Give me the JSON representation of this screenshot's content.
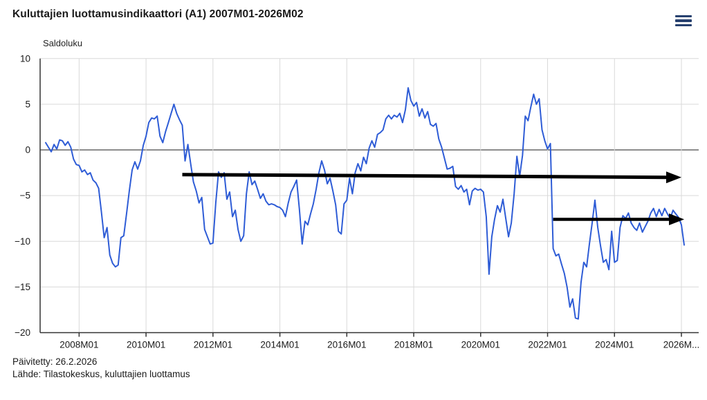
{
  "header": {
    "title": "Kuluttajien luottamusindikaattori (A1) 2007M01-2026M02",
    "menu_icon": "hamburger-menu"
  },
  "footer": {
    "updated": "Päivitetty: 26.2.2026",
    "source": "Lähde: Tilastokeskus, kuluttajien luottamus"
  },
  "chart_data": {
    "type": "line",
    "title": "Kuluttajien luottamusindikaattori (A1) 2007M01-2026M02",
    "ylabel": "Saldoluku",
    "xlabel": "",
    "x_start": "2007M01",
    "x_end": "2026M02",
    "ylim": [
      -20,
      10
    ],
    "y_ticks": [
      10,
      5,
      0,
      -5,
      -10,
      -15,
      -20
    ],
    "x_tick_labels": [
      "2008M01",
      "2010M01",
      "2012M01",
      "2014M01",
      "2016M01",
      "2018M01",
      "2020M01",
      "2022M01",
      "2024M01",
      "2026M..."
    ],
    "grid": true,
    "legend": "none",
    "line_color": "#2e5cd6",
    "grid_color": "#d9d9d9",
    "zero_line_color": "#8c8c8c",
    "axis_color": "#333333",
    "annotation_color": "#000000",
    "series": [
      {
        "name": "Kuluttajien luottamusindikaattori (A1)",
        "start": "2007M01",
        "values": [
          0.8,
          0.3,
          -0.2,
          0.6,
          0.1,
          1.1,
          1.0,
          0.5,
          0.9,
          0.3,
          -1.0,
          -1.6,
          -1.7,
          -2.4,
          -2.2,
          -2.7,
          -2.5,
          -3.3,
          -3.6,
          -4.2,
          -6.8,
          -9.6,
          -8.5,
          -11.5,
          -12.4,
          -12.8,
          -12.6,
          -9.6,
          -9.4,
          -7.0,
          -4.5,
          -2.2,
          -1.3,
          -2.1,
          -1.2,
          0.5,
          1.5,
          3.0,
          3.5,
          3.4,
          3.7,
          1.5,
          0.8,
          2.0,
          3.0,
          4.0,
          5.0,
          4.0,
          3.3,
          2.7,
          -1.2,
          0.6,
          -1.5,
          -3.5,
          -4.5,
          -5.8,
          -5.2,
          -8.7,
          -9.5,
          -10.3,
          -10.2,
          -5.8,
          -2.4,
          -3.0,
          -2.5,
          -5.4,
          -4.6,
          -7.3,
          -6.6,
          -8.7,
          -10.0,
          -9.4,
          -4.8,
          -2.4,
          -3.8,
          -3.4,
          -4.3,
          -5.3,
          -4.8,
          -5.6,
          -6.0,
          -5.9,
          -6.0,
          -6.2,
          -6.3,
          -6.6,
          -7.3,
          -5.8,
          -4.6,
          -4.0,
          -3.3,
          -6.5,
          -10.3,
          -7.8,
          -8.2,
          -7.0,
          -5.9,
          -4.3,
          -2.5,
          -1.2,
          -2.2,
          -3.7,
          -3.1,
          -4.5,
          -6.0,
          -8.9,
          -9.2,
          -5.9,
          -5.5,
          -3.1,
          -4.8,
          -2.5,
          -1.5,
          -2.3,
          -0.8,
          -1.5,
          0.2,
          1.0,
          0.3,
          1.7,
          1.9,
          2.2,
          3.4,
          3.8,
          3.4,
          3.8,
          3.6,
          4.0,
          3.0,
          4.4,
          6.8,
          5.4,
          4.8,
          5.2,
          3.7,
          4.5,
          3.5,
          4.2,
          2.8,
          2.6,
          2.9,
          1.2,
          0.3,
          -0.9,
          -2.1,
          -2.0,
          -1.8,
          -4.0,
          -4.3,
          -3.9,
          -4.6,
          -4.3,
          -6.0,
          -4.5,
          -4.2,
          -4.4,
          -4.3,
          -4.6,
          -7.3,
          -13.6,
          -9.5,
          -7.6,
          -6.1,
          -6.8,
          -5.4,
          -7.5,
          -9.5,
          -8.0,
          -4.8,
          -0.7,
          -2.9,
          -0.6,
          3.7,
          3.2,
          4.7,
          6.1,
          5.0,
          5.6,
          2.2,
          1.0,
          0.1,
          0.7,
          -10.8,
          -11.6,
          -11.4,
          -12.5,
          -13.5,
          -15.0,
          -17.2,
          -16.3,
          -18.4,
          -18.5,
          -14.5,
          -12.3,
          -12.8,
          -10.3,
          -8.0,
          -5.5,
          -8.5,
          -10.5,
          -12.3,
          -12.0,
          -13.1,
          -8.9,
          -12.3,
          -12.1,
          -8.5,
          -7.2,
          -7.5,
          -6.9,
          -8.0,
          -8.5,
          -8.8,
          -8.0,
          -9.0,
          -8.4,
          -7.8,
          -6.9,
          -6.4,
          -7.3,
          -6.5,
          -7.2,
          -6.4,
          -7.0,
          -7.5,
          -6.6,
          -7.0,
          -7.4,
          -8.2,
          -10.4
        ]
      }
    ],
    "annotations": [
      {
        "type": "arrow",
        "from": {
          "month": "2011M02",
          "value": -2.7
        },
        "to": {
          "month": "2026M01",
          "value": -3.0
        },
        "width": 5
      },
      {
        "type": "arrow",
        "from": {
          "month": "2022M03",
          "value": -7.6
        },
        "to": {
          "month": "2026M02",
          "value": -7.6
        },
        "width": 4.5
      }
    ]
  }
}
